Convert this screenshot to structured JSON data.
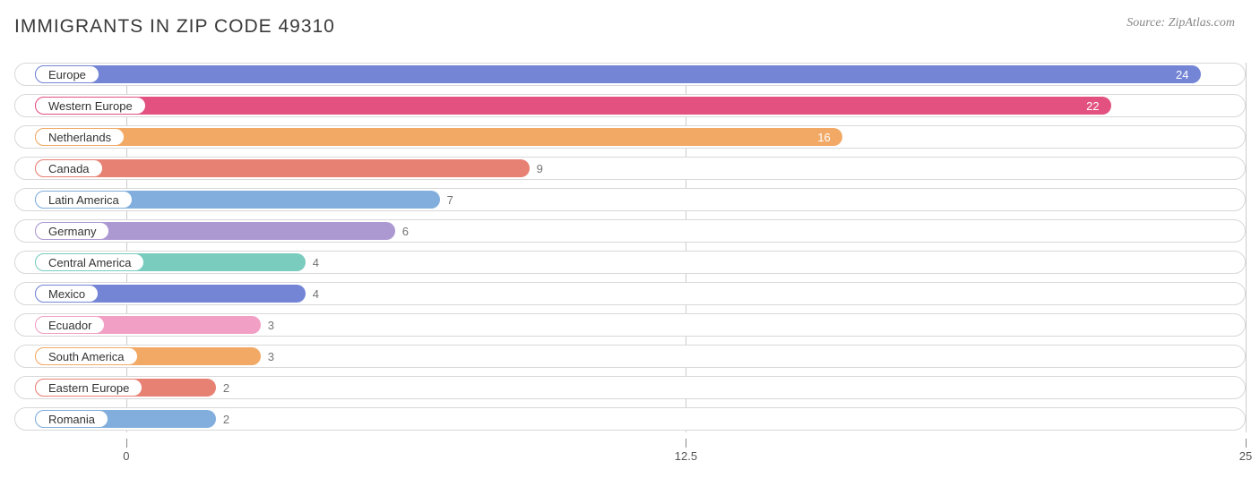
{
  "header": {
    "title": "IMMIGRANTS IN ZIP CODE 49310",
    "source": "Source: ZipAtlas.com"
  },
  "chart": {
    "type": "bar-horizontal",
    "x_domain": [
      -2.5,
      25
    ],
    "x_ticks": [
      0,
      12.5,
      25
    ],
    "label_origin_value": -2.1,
    "background_color": "#ffffff",
    "track_border_color": "#d8d8d8",
    "grid_color": "#cccccc",
    "value_outside_color": "#747474",
    "value_inside_color": "#ffffff",
    "axis_label_fontsize": 13,
    "title_fontsize": 21,
    "source_fontsize": 14,
    "source_color": "#888888",
    "rows": [
      {
        "label": "Europe",
        "value": 24,
        "color": "#7485d6",
        "value_inside": true
      },
      {
        "label": "Western Europe",
        "value": 22,
        "color": "#e2517f",
        "value_inside": true
      },
      {
        "label": "Netherlands",
        "value": 16,
        "color": "#f2a965",
        "value_inside": true
      },
      {
        "label": "Canada",
        "value": 9,
        "color": "#e78173",
        "value_inside": false
      },
      {
        "label": "Latin America",
        "value": 7,
        "color": "#81aedc",
        "value_inside": false
      },
      {
        "label": "Germany",
        "value": 6,
        "color": "#ad99d2",
        "value_inside": false
      },
      {
        "label": "Central America",
        "value": 4,
        "color": "#7accbf",
        "value_inside": false
      },
      {
        "label": "Mexico",
        "value": 4,
        "color": "#7485d6",
        "value_inside": false
      },
      {
        "label": "Ecuador",
        "value": 3,
        "color": "#f19fc4",
        "value_inside": false
      },
      {
        "label": "South America",
        "value": 3,
        "color": "#f2a965",
        "value_inside": false
      },
      {
        "label": "Eastern Europe",
        "value": 2,
        "color": "#e78173",
        "value_inside": false
      },
      {
        "label": "Romania",
        "value": 2,
        "color": "#81aedc",
        "value_inside": false
      }
    ]
  }
}
